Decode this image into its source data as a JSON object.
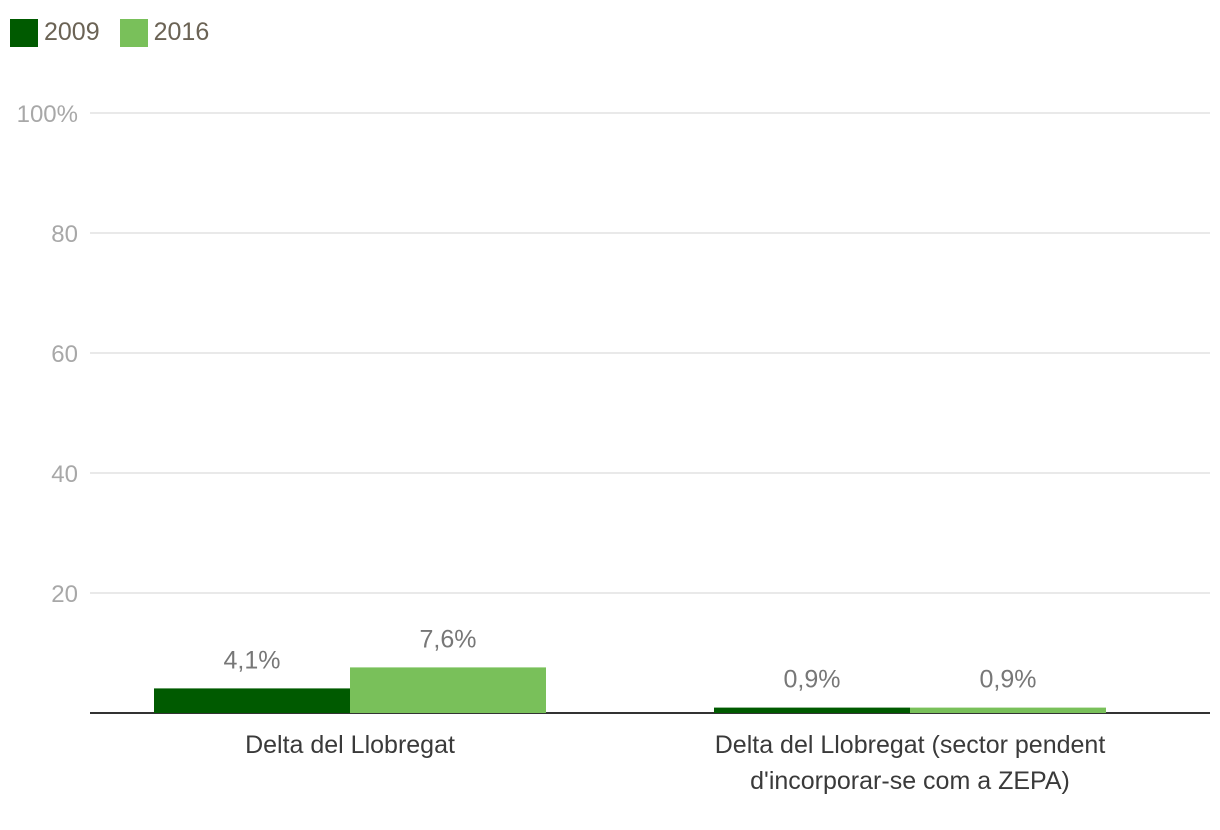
{
  "chart_data": {
    "type": "bar",
    "categories": [
      [
        "Delta del Llobregat"
      ],
      [
        "Delta del Llobregat (sector pendent",
        "d'incorporar-se com a ZEPA)"
      ]
    ],
    "series": [
      {
        "name": "2009",
        "values": [
          4.1,
          0.9
        ],
        "labels": [
          "4,1%",
          "0,9%"
        ],
        "color": "#005a00"
      },
      {
        "name": "2016",
        "values": [
          7.6,
          0.9
        ],
        "labels": [
          "7,6%",
          "0,9%"
        ],
        "color": "#79c05a"
      }
    ],
    "ylim": [
      0,
      100
    ],
    "yticks": [
      {
        "value": 20,
        "label": "20"
      },
      {
        "value": 40,
        "label": "40"
      },
      {
        "value": 60,
        "label": "60"
      },
      {
        "value": 80,
        "label": "80"
      },
      {
        "value": 100,
        "label": "100%"
      }
    ],
    "grid": true,
    "legend_position": "top-left"
  }
}
